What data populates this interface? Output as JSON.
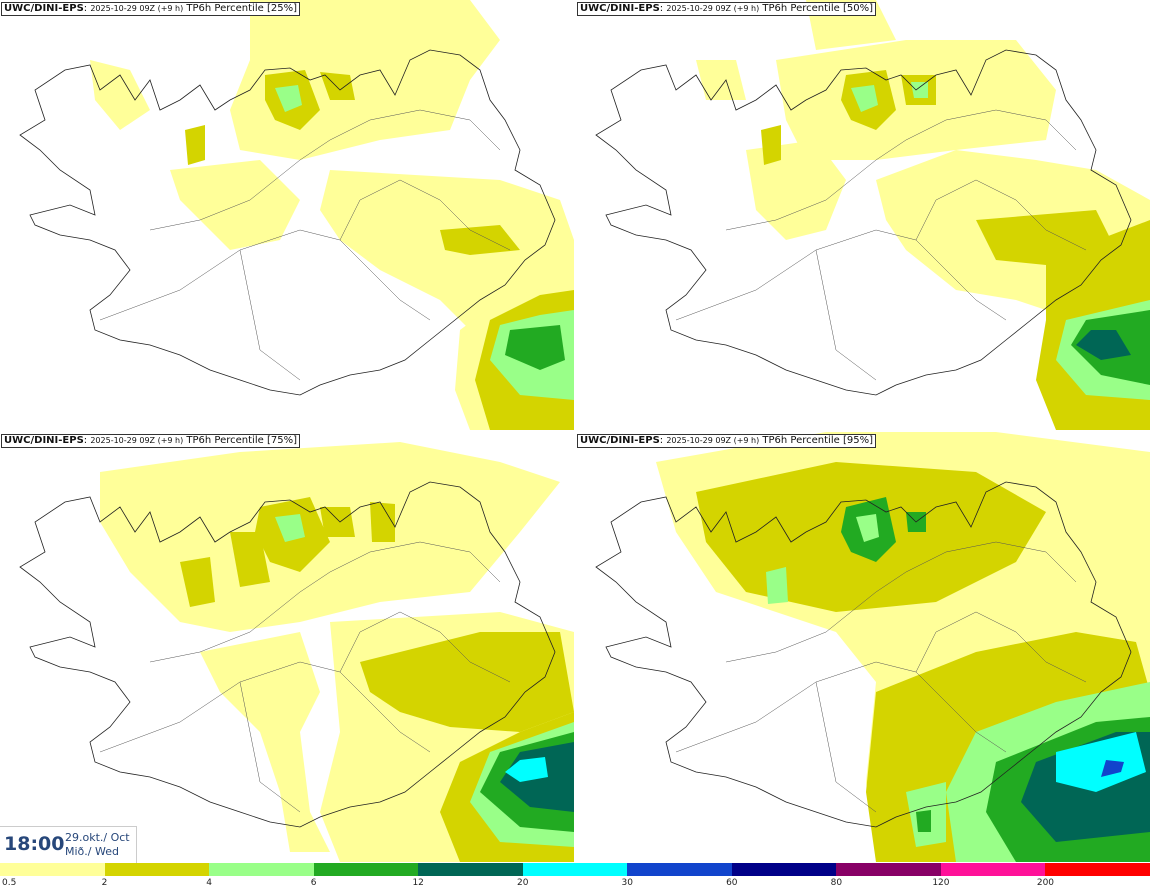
{
  "panels": [
    {
      "model": "UWC/DINI-EPS",
      "run": "2025-10-29 09Z (+9 h)",
      "product": "TP6h Percentile [25%]"
    },
    {
      "model": "UWC/DINI-EPS",
      "run": "2025-10-29 09Z (+9 h)",
      "product": "TP6h Percentile [50%]"
    },
    {
      "model": "UWC/DINI-EPS",
      "run": "2025-10-29 09Z (+9 h)",
      "product": "TP6h Percentile [75%]"
    },
    {
      "model": "UWC/DINI-EPS",
      "run": "2025-10-29 09Z (+9 h)",
      "product": "TP6h Percentile [95%]"
    }
  ],
  "valid_time": {
    "time": "18:00",
    "date_line1": "29.okt./ Oct",
    "date_line2": "Mið./ Wed"
  },
  "legend": {
    "ticks": [
      "0.5",
      "2",
      "4",
      "6",
      "12",
      "20",
      "30",
      "60",
      "80",
      "120",
      "200"
    ],
    "colors": [
      "#ffff99",
      "#d4d400",
      "#99ff88",
      "#22aa22",
      "#006655",
      "#00ffff",
      "#1144cc",
      "#000088",
      "#880066",
      "#ff1199",
      "#ff0000"
    ]
  }
}
